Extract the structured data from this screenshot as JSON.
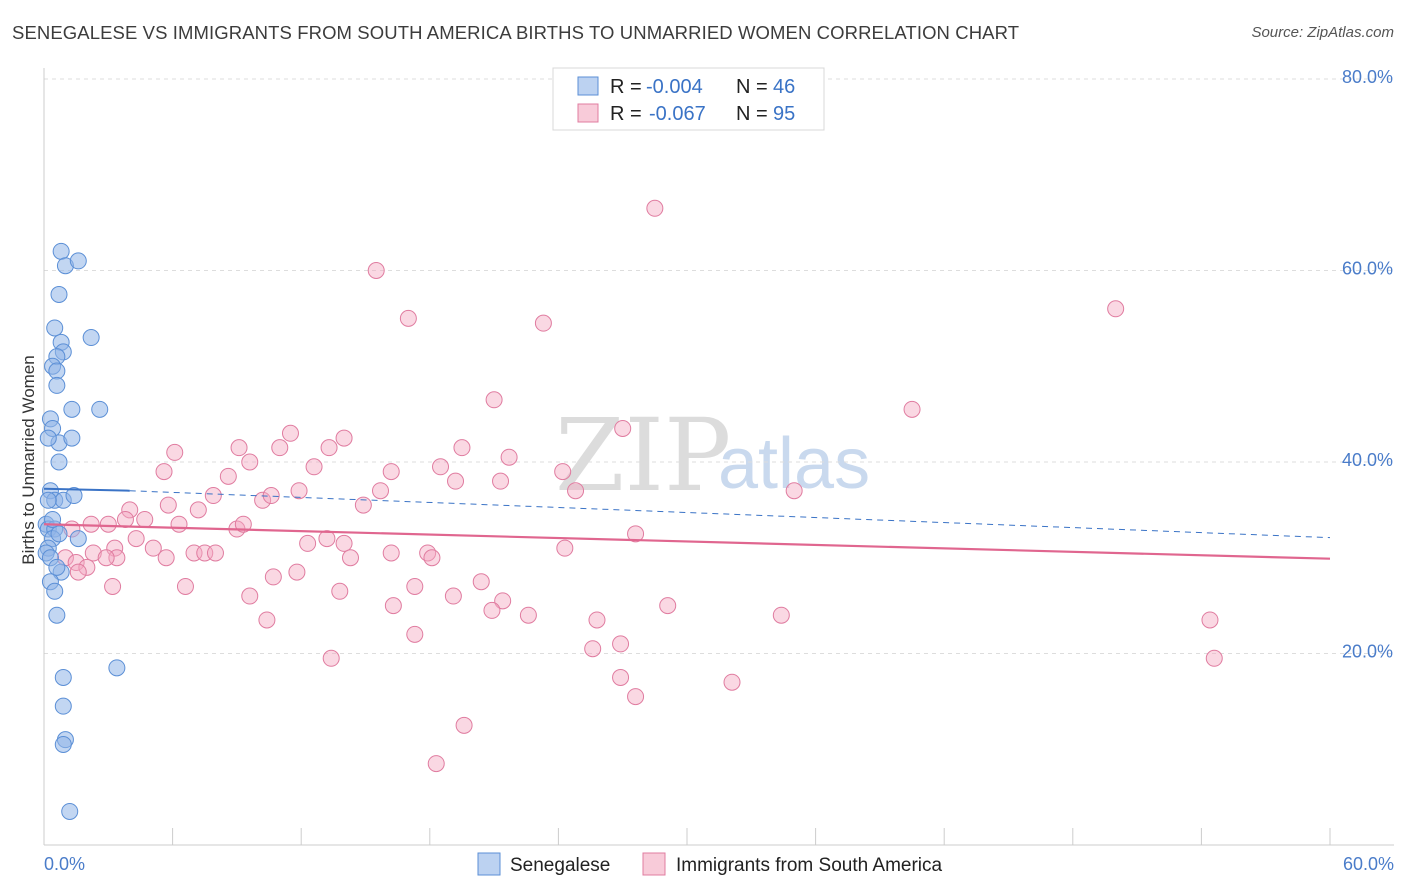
{
  "header": {
    "title": "SENEGALESE VS IMMIGRANTS FROM SOUTH AMERICA BIRTHS TO UNMARRIED WOMEN CORRELATION CHART",
    "source": "Source: ZipAtlas.com"
  },
  "watermark": {
    "zip": "ZIP",
    "atlas": "atlas"
  },
  "legend_box": {
    "rows": [
      {
        "r_label": "R =",
        "r_value": "-0.004",
        "n_label": "N =",
        "n_value": "46",
        "color": "#8fb4e8"
      },
      {
        "r_label": "R =",
        "r_value": "-0.067",
        "n_label": "N =",
        "n_value": "95",
        "color": "#f4a9c0"
      }
    ]
  },
  "bottom_legend": {
    "series1": "Senegalese",
    "series2": "Immigrants from South America"
  },
  "chart_data": {
    "type": "scatter",
    "title": "SENEGALESE VS IMMIGRANTS FROM SOUTH AMERICA BIRTHS TO UNMARRIED WOMEN CORRELATION CHART",
    "xlabel": "",
    "ylabel": "Births to Unmarried Women",
    "xlim": [
      0,
      60
    ],
    "ylim": [
      0,
      82
    ],
    "x_tick_labels": [
      "0.0%",
      "60.0%"
    ],
    "y_ticks": [
      20,
      40,
      60,
      80
    ],
    "y_tick_labels": [
      "20.0%",
      "40.0%",
      "60.0%",
      "80.0%"
    ],
    "series": [
      {
        "name": "Senegalese",
        "color": "#8fb4e8",
        "stroke": "#5b8fd6",
        "r": -0.004,
        "n": 46,
        "trend": {
          "x0": 0,
          "y0": 37.2,
          "x1": 4.0,
          "y1": 37.0,
          "dash_x1": 60,
          "dash_y1": 32.1
        },
        "points": [
          [
            0.8,
            62.0
          ],
          [
            1.0,
            60.5
          ],
          [
            1.6,
            61.0
          ],
          [
            0.7,
            57.5
          ],
          [
            0.5,
            54.0
          ],
          [
            0.8,
            52.5
          ],
          [
            0.9,
            51.5
          ],
          [
            0.6,
            51.0
          ],
          [
            2.2,
            53.0
          ],
          [
            0.4,
            50.0
          ],
          [
            0.6,
            49.5
          ],
          [
            0.6,
            48.0
          ],
          [
            2.6,
            45.5
          ],
          [
            0.3,
            44.5
          ],
          [
            0.4,
            43.5
          ],
          [
            1.3,
            45.5
          ],
          [
            0.7,
            42.0
          ],
          [
            1.3,
            42.5
          ],
          [
            0.2,
            42.5
          ],
          [
            0.7,
            40.0
          ],
          [
            0.3,
            37.0
          ],
          [
            0.5,
            36.0
          ],
          [
            0.9,
            36.0
          ],
          [
            1.4,
            36.5
          ],
          [
            0.2,
            36.0
          ],
          [
            0.1,
            33.5
          ],
          [
            0.2,
            33.0
          ],
          [
            0.5,
            33.0
          ],
          [
            0.4,
            32.0
          ],
          [
            0.7,
            32.5
          ],
          [
            1.6,
            32.0
          ],
          [
            0.2,
            31.0
          ],
          [
            0.1,
            30.5
          ],
          [
            0.3,
            30.0
          ],
          [
            0.8,
            28.5
          ],
          [
            0.3,
            27.5
          ],
          [
            0.5,
            26.5
          ],
          [
            0.6,
            24.0
          ],
          [
            3.4,
            18.5
          ],
          [
            0.9,
            17.5
          ],
          [
            0.9,
            14.5
          ],
          [
            1.0,
            11.0
          ],
          [
            0.9,
            10.5
          ],
          [
            1.2,
            3.5
          ],
          [
            0.6,
            29.0
          ],
          [
            0.4,
            34.0
          ]
        ]
      },
      {
        "name": "Immigrants from South America",
        "color": "#f4a9c0",
        "stroke": "#e07ca0",
        "r": -0.067,
        "n": 95,
        "trend": {
          "x0": 0,
          "y0": 33.5,
          "x1": 60,
          "y1": 29.9
        },
        "points": [
          [
            28.5,
            66.5
          ],
          [
            15.5,
            60.0
          ],
          [
            50.0,
            56.0
          ],
          [
            17.0,
            55.0
          ],
          [
            23.3,
            54.5
          ],
          [
            21.0,
            46.5
          ],
          [
            40.5,
            45.5
          ],
          [
            27.0,
            43.5
          ],
          [
            11.5,
            43.0
          ],
          [
            14.0,
            42.5
          ],
          [
            9.1,
            41.5
          ],
          [
            11.0,
            41.5
          ],
          [
            13.3,
            41.5
          ],
          [
            19.5,
            41.5
          ],
          [
            6.1,
            41.0
          ],
          [
            9.6,
            40.0
          ],
          [
            21.7,
            40.5
          ],
          [
            12.6,
            39.5
          ],
          [
            18.5,
            39.5
          ],
          [
            5.6,
            39.0
          ],
          [
            8.6,
            38.5
          ],
          [
            16.2,
            39.0
          ],
          [
            24.2,
            39.0
          ],
          [
            19.2,
            38.0
          ],
          [
            21.3,
            38.0
          ],
          [
            11.9,
            37.0
          ],
          [
            35.0,
            37.0
          ],
          [
            7.9,
            36.5
          ],
          [
            10.2,
            36.0
          ],
          [
            10.6,
            36.5
          ],
          [
            24.8,
            37.0
          ],
          [
            15.7,
            37.0
          ],
          [
            5.8,
            35.5
          ],
          [
            14.9,
            35.5
          ],
          [
            7.2,
            35.0
          ],
          [
            4.0,
            35.0
          ],
          [
            3.8,
            34.0
          ],
          [
            4.7,
            34.0
          ],
          [
            9.0,
            33.0
          ],
          [
            6.3,
            33.5
          ],
          [
            3.0,
            33.5
          ],
          [
            9.3,
            33.5
          ],
          [
            2.2,
            33.5
          ],
          [
            1.3,
            33.0
          ],
          [
            4.3,
            32.0
          ],
          [
            7.0,
            30.5
          ],
          [
            12.3,
            31.5
          ],
          [
            13.2,
            32.0
          ],
          [
            14.0,
            31.5
          ],
          [
            27.6,
            32.5
          ],
          [
            24.3,
            31.0
          ],
          [
            5.1,
            31.0
          ],
          [
            3.3,
            31.0
          ],
          [
            2.3,
            30.5
          ],
          [
            3.4,
            30.0
          ],
          [
            7.5,
            30.5
          ],
          [
            8.0,
            30.5
          ],
          [
            16.2,
            30.5
          ],
          [
            17.9,
            30.5
          ],
          [
            18.1,
            30.0
          ],
          [
            14.3,
            30.0
          ],
          [
            5.7,
            30.0
          ],
          [
            2.9,
            30.0
          ],
          [
            1.0,
            30.0
          ],
          [
            1.5,
            29.5
          ],
          [
            2.0,
            29.0
          ],
          [
            1.6,
            28.5
          ],
          [
            3.2,
            27.0
          ],
          [
            6.6,
            27.0
          ],
          [
            11.8,
            28.5
          ],
          [
            10.7,
            28.0
          ],
          [
            20.4,
            27.5
          ],
          [
            17.3,
            27.0
          ],
          [
            13.8,
            26.5
          ],
          [
            9.6,
            26.0
          ],
          [
            19.1,
            26.0
          ],
          [
            21.4,
            25.5
          ],
          [
            16.3,
            25.0
          ],
          [
            29.1,
            25.0
          ],
          [
            20.9,
            24.5
          ],
          [
            22.6,
            24.0
          ],
          [
            34.4,
            24.0
          ],
          [
            10.4,
            23.5
          ],
          [
            25.8,
            23.5
          ],
          [
            54.4,
            23.5
          ],
          [
            17.3,
            22.0
          ],
          [
            26.9,
            21.0
          ],
          [
            25.6,
            20.5
          ],
          [
            13.4,
            19.5
          ],
          [
            54.6,
            19.5
          ],
          [
            26.9,
            17.5
          ],
          [
            32.1,
            17.0
          ],
          [
            27.6,
            15.5
          ],
          [
            19.6,
            12.5
          ],
          [
            18.3,
            8.5
          ]
        ]
      }
    ]
  }
}
